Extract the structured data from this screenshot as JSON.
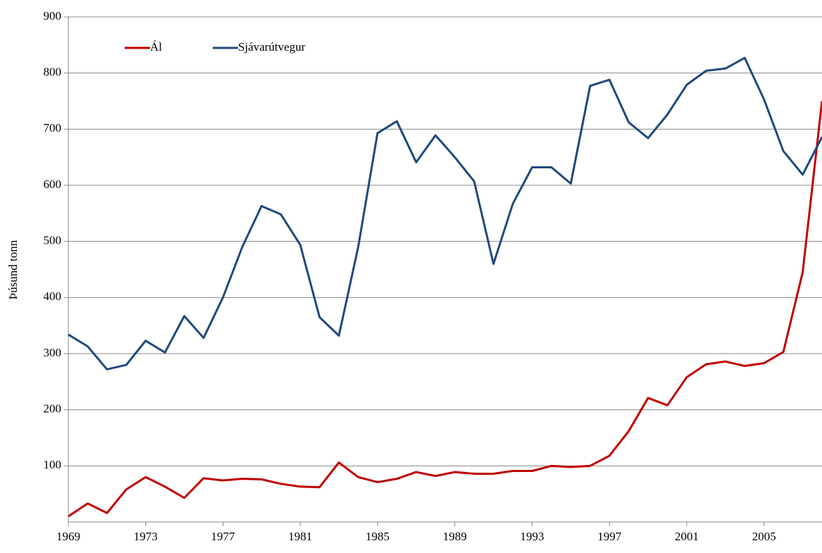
{
  "chart_data": {
    "type": "line",
    "y_label": "Þúsund tonn",
    "x": [
      1969,
      1970,
      1971,
      1972,
      1973,
      1974,
      1975,
      1976,
      1977,
      1978,
      1979,
      1980,
      1981,
      1982,
      1983,
      1984,
      1985,
      1986,
      1987,
      1988,
      1989,
      1990,
      1991,
      1992,
      1993,
      1994,
      1995,
      1996,
      1997,
      1998,
      1999,
      2000,
      2001,
      2002,
      2003,
      2004,
      2005,
      2006,
      2007,
      2008
    ],
    "series": [
      {
        "name": "Ál",
        "color": "#c00000",
        "values": [
          10,
          33,
          16,
          58,
          80,
          63,
          43,
          78,
          74,
          77,
          76,
          68,
          63,
          62,
          106,
          80,
          71,
          77,
          89,
          82,
          89,
          86,
          86,
          91,
          91,
          100,
          98,
          100,
          118,
          162,
          221,
          208,
          258,
          281,
          286,
          278,
          283,
          303,
          445,
          750
        ]
      },
      {
        "name": "Sjávarútvegur",
        "color": "#1f497d",
        "values": [
          334,
          313,
          272,
          280,
          323,
          302,
          367,
          328,
          400,
          490,
          563,
          548,
          494,
          365,
          332,
          490,
          693,
          714,
          641,
          689,
          650,
          607,
          460,
          567,
          632,
          632,
          603,
          777,
          788,
          712,
          684,
          726,
          779,
          804,
          808,
          827,
          753,
          661,
          619,
          686
        ]
      }
    ],
    "xlim": [
      1969,
      2008
    ],
    "xticks": [
      1969,
      1973,
      1977,
      1981,
      1985,
      1989,
      1993,
      1997,
      2001,
      2005
    ],
    "ylim": [
      0,
      900
    ],
    "yticks": [
      100,
      200,
      300,
      400,
      500,
      600,
      700,
      800,
      900
    ],
    "grid": true,
    "legend": "top-left"
  }
}
